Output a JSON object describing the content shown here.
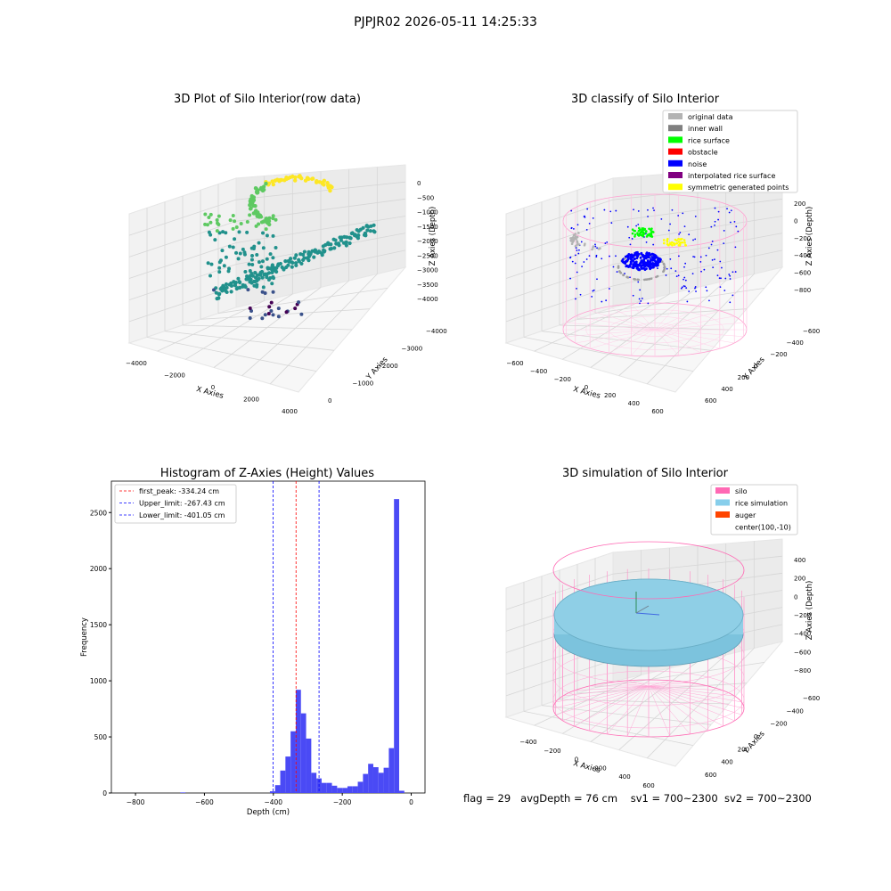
{
  "figure": {
    "title": "PJPJR02 2026-05-11 14:25:33",
    "footer": {
      "flag": "flag = 29",
      "avg_depth": "avgDepth = 76 cm",
      "sv1": "sv1 = 700~2300",
      "sv2": "sv2 = 700~2300"
    }
  },
  "chart_data": [
    {
      "type": "scatter",
      "title": "3D Plot of Silo Interior(row data)",
      "xlabel": "X Axies",
      "ylabel": "Y Axies",
      "zlabel": "Z Axies (Depth)",
      "x_ticks": [
        "−4000",
        "−2000",
        "0",
        "2000",
        "4000"
      ],
      "y_ticks": [
        "0",
        "−1000",
        "−2000",
        "−3000",
        "−4000"
      ],
      "z_ticks": [
        "0",
        "−500",
        "−1000",
        "−1500",
        "−2000",
        "−2500",
        "−3000",
        "−3500",
        "−4000"
      ],
      "xlim": [
        -4500,
        4500
      ],
      "ylim": [
        -4500,
        500
      ],
      "zlim": [
        -4200,
        200
      ],
      "colormap": "viridis",
      "colormap_colors": [
        "#440154",
        "#3b528b",
        "#21918c",
        "#5ec962",
        "#fde725"
      ],
      "grid": true
    },
    {
      "type": "scatter",
      "title": "3D classify of Silo Interior",
      "xlabel": "X Axies",
      "ylabel": "Y Axies",
      "zlabel": "Z Axies (Depth)",
      "x_ticks": [
        "−600",
        "−400",
        "−200",
        "0",
        "200",
        "400",
        "600"
      ],
      "y_ticks": [
        "600",
        "400",
        "200",
        "0",
        "−200",
        "−400",
        "−600"
      ],
      "z_ticks": [
        "200",
        "0",
        "−200",
        "−400",
        "−600",
        "−800"
      ],
      "xlim": [
        -650,
        650
      ],
      "ylim": [
        -650,
        650
      ],
      "zlim": [
        -900,
        300
      ],
      "legend_position": "top-right",
      "series": [
        {
          "name": "original data",
          "color": "#b3b3b3"
        },
        {
          "name": "inner wall",
          "color": "#808080"
        },
        {
          "name": "rice surface",
          "color": "#00ff00"
        },
        {
          "name": "obstacle",
          "color": "#ff0000"
        },
        {
          "name": "noise",
          "color": "#0000ff"
        },
        {
          "name": "interpolated rice surface",
          "color": "#800080"
        },
        {
          "name": "symmetric generated points",
          "color": "#ffff00"
        }
      ],
      "grid": true
    },
    {
      "type": "bar",
      "title": "Histogram of Z-Axies (Height) Values",
      "xlabel": "Depth (cm)",
      "ylabel": "Frequency",
      "xlim": [
        -870,
        40
      ],
      "ylim": [
        0,
        2780
      ],
      "x_ticks": [
        -800,
        -600,
        -400,
        -200,
        0
      ],
      "x_tick_labels": [
        "−800",
        "−600",
        "−400",
        "−200",
        "0"
      ],
      "y_ticks": [
        0,
        500,
        1000,
        1500,
        2000,
        2500
      ],
      "bar_color": "#4a4af5",
      "bins": [
        {
          "x0": -670,
          "x1": -655,
          "value": 5
        },
        {
          "x0": -410,
          "x1": -395,
          "value": 15
        },
        {
          "x0": -395,
          "x1": -380,
          "value": 70
        },
        {
          "x0": -380,
          "x1": -365,
          "value": 200
        },
        {
          "x0": -365,
          "x1": -350,
          "value": 325
        },
        {
          "x0": -350,
          "x1": -335,
          "value": 550
        },
        {
          "x0": -335,
          "x1": -320,
          "value": 920
        },
        {
          "x0": -320,
          "x1": -305,
          "value": 710
        },
        {
          "x0": -305,
          "x1": -290,
          "value": 485
        },
        {
          "x0": -290,
          "x1": -275,
          "value": 180
        },
        {
          "x0": -275,
          "x1": -260,
          "value": 130
        },
        {
          "x0": -260,
          "x1": -245,
          "value": 90
        },
        {
          "x0": -245,
          "x1": -230,
          "value": 90
        },
        {
          "x0": -230,
          "x1": -215,
          "value": 65
        },
        {
          "x0": -215,
          "x1": -200,
          "value": 45
        },
        {
          "x0": -200,
          "x1": -185,
          "value": 45
        },
        {
          "x0": -185,
          "x1": -170,
          "value": 60
        },
        {
          "x0": -170,
          "x1": -155,
          "value": 60
        },
        {
          "x0": -155,
          "x1": -140,
          "value": 100
        },
        {
          "x0": -140,
          "x1": -125,
          "value": 170
        },
        {
          "x0": -125,
          "x1": -110,
          "value": 260
        },
        {
          "x0": -110,
          "x1": -95,
          "value": 230
        },
        {
          "x0": -95,
          "x1": -80,
          "value": 180
        },
        {
          "x0": -80,
          "x1": -65,
          "value": 225
        },
        {
          "x0": -65,
          "x1": -50,
          "value": 400
        },
        {
          "x0": -50,
          "x1": -35,
          "value": 2620
        },
        {
          "x0": -35,
          "x1": -20,
          "value": 20
        }
      ],
      "vlines": [
        {
          "name": "first_peak: -334.24 cm",
          "x": -334.24,
          "color": "#ff0000"
        },
        {
          "name": "Upper_limit: -267.43 cm",
          "x": -267.43,
          "color": "#0000ff"
        },
        {
          "name": "Lower_limit: -401.05 cm",
          "x": -401.05,
          "color": "#0000ff"
        }
      ],
      "legend_position": "top-left"
    },
    {
      "type": "scatter",
      "title": "3D simulation of Silo Interior",
      "xlabel": "X Axies",
      "ylabel": "Y Axies",
      "zlabel": "Z Axies (Depth)",
      "x_ticks": [
        "−400",
        "−200",
        "0",
        "200",
        "400",
        "600"
      ],
      "y_ticks": [
        "600",
        "400",
        "200",
        "0",
        "−200",
        "−400",
        "−600"
      ],
      "z_ticks": [
        "400",
        "200",
        "0",
        "−200",
        "−400",
        "−600",
        "−800"
      ],
      "xlim": [
        -500,
        700
      ],
      "ylim": [
        -650,
        650
      ],
      "zlim": [
        -900,
        450
      ],
      "legend_position": "top-right",
      "series": [
        {
          "name": "silo",
          "color": "#ff69b4"
        },
        {
          "name": "rice simulation",
          "color": "#87ceeb"
        },
        {
          "name": "auger",
          "color": "#ff4500"
        },
        {
          "name": "center(100,-10)",
          "color": "#ffffff"
        }
      ],
      "grid": true
    }
  ]
}
